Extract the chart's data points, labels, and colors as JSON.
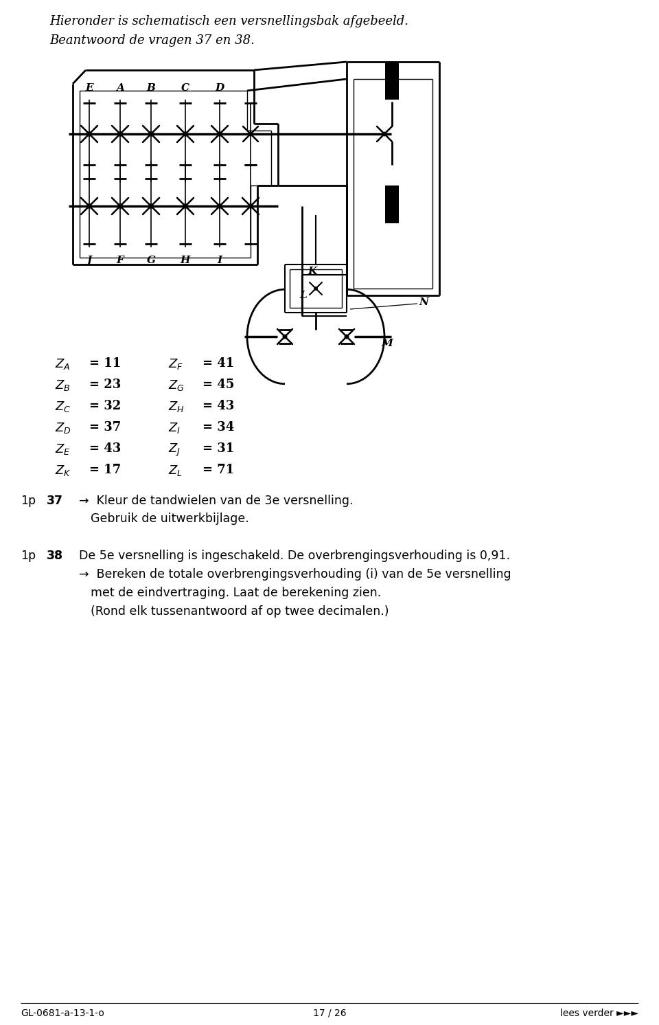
{
  "title_line1": "Hieronder is schematisch een versnellingsbak afgebeeld.",
  "title_line2": "Beantwoord de vragen 37 en 38.",
  "labels_left": [
    [
      "A",
      "11"
    ],
    [
      "B",
      "23"
    ],
    [
      "C",
      "32"
    ],
    [
      "D",
      "37"
    ],
    [
      "E",
      "43"
    ],
    [
      "K",
      "17"
    ]
  ],
  "labels_right": [
    [
      "F",
      "41"
    ],
    [
      "G",
      "45"
    ],
    [
      "H",
      "43"
    ],
    [
      "I",
      "34"
    ],
    [
      "J",
      "31"
    ],
    [
      "L",
      "71"
    ]
  ],
  "q37_prefix": "1p",
  "q37_num": "37",
  "q37_line1": "→  Kleur de tandwielen van de 3e versnelling.",
  "q37_line2": "Gebruik de uitwerkbijlage.",
  "q38_prefix": "1p",
  "q38_num": "38",
  "q38_line1": "De 5e versnelling is ingeschakeld. De overbrengingsverhouding is 0,91.",
  "q38_line2": "→  Bereken de totale overbrengingsverhouding (i) van de 5e versnelling",
  "q38_line3": "met de eindvertraging. Laat de berekening zien.",
  "q38_line4": "(Rond elk tussenantwoord af op twee decimalen.)",
  "footer_left": "GL-0681-a-13-1-o",
  "footer_center": "17 / 26",
  "footer_right": "lees verder ►►►"
}
